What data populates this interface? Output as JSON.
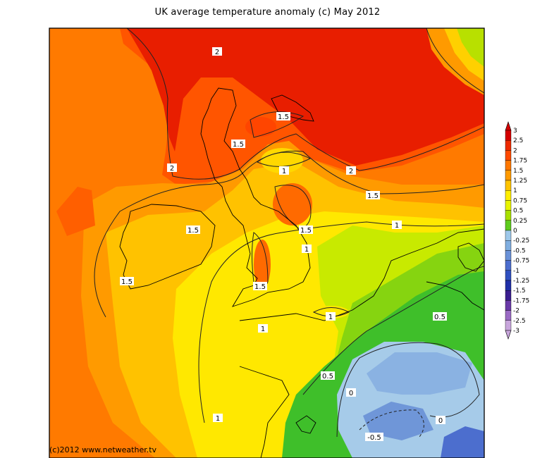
{
  "title": "UK average temperature anomaly (c) May 2012",
  "credit": "(c)2012 www.netweather.tv",
  "contour_labels": [
    "2",
    "2",
    "2",
    "1.5",
    "1.5",
    "1.5",
    "1.5",
    "1.5",
    "1.5",
    "1.5",
    "1",
    "1",
    "1",
    "1",
    "1",
    "1",
    "0.5",
    "0.5",
    "0",
    "0",
    "-0.5"
  ],
  "legend": {
    "values": [
      "3",
      "2.5",
      "2",
      "1.75",
      "1.5",
      "1.25",
      "1",
      "0.75",
      "0.5",
      "0.25",
      "0",
      "-0.25",
      "-0.5",
      "-0.75",
      "-1",
      "-1.25",
      "-1.5",
      "-1.75",
      "-2",
      "-2.5",
      "-3"
    ],
    "colors": [
      "#d40000",
      "#ee2a00",
      "#ff4a00",
      "#ff7800",
      "#ff9a00",
      "#ffc400",
      "#ffee00",
      "#e8f400",
      "#a8e000",
      "#5fcc1e",
      "#9ec8ea",
      "#80aee0",
      "#6a92d8",
      "#4c6ece",
      "#3050c0",
      "#2030a8",
      "#3a1e90",
      "#6a3aa8",
      "#9a6ac4",
      "#c8a6dc"
    ]
  }
}
